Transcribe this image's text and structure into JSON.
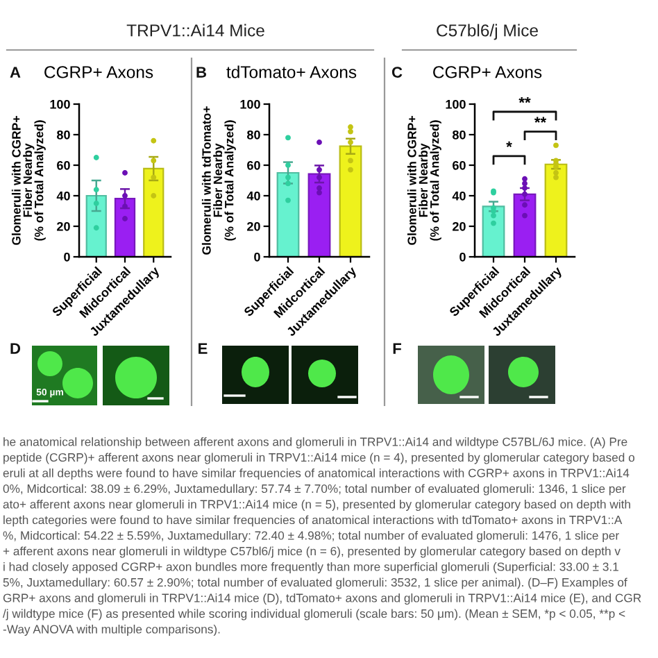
{
  "chart_data": [
    {
      "type": "bar",
      "title": "CGRP+ Axons",
      "ylabel": "Glomeruli with CGRP+\nFiber Nearby\n(% of Total Analyzed)",
      "categories": [
        "Superficial",
        "Midcortical",
        "Juxtamedullary"
      ],
      "ylim": [
        0,
        100
      ],
      "yticks": [
        0,
        20,
        40,
        60,
        80,
        100
      ],
      "series": [
        {
          "type": "bar",
          "colors": [
            "#66f2cf",
            "#9a1ff2",
            "#eef21c"
          ],
          "values": [
            40,
            38.09,
            57.74
          ],
          "errors": [
            10,
            6.29,
            7.7
          ]
        },
        {
          "type": "scatter",
          "marker": "circle",
          "x": [
            "Superficial",
            "Superficial",
            "Superficial",
            "Superficial",
            "Midcortical",
            "Midcortical",
            "Midcortical",
            "Midcortical",
            "Juxtamedullary",
            "Juxtamedullary",
            "Juxtamedullary",
            "Juxtamedullary"
          ],
          "values": [
            65,
            44,
            35,
            19,
            55,
            40,
            33,
            25,
            76,
            63,
            52,
            40
          ],
          "colors": [
            "#2fcf9f",
            "#2fcf9f",
            "#2fcf9f",
            "#2fcf9f",
            "#6b0fb5",
            "#6b0fb5",
            "#6b0fb5",
            "#6b0fb5",
            "#c4c414",
            "#c4c414",
            "#c4c414",
            "#c4c414"
          ]
        }
      ],
      "annotations": [
        "A",
        "D",
        "50 µm",
        "TRPV1::Ai14 Mice"
      ]
    },
    {
      "type": "bar",
      "title": "tdTomato+ Axons",
      "ylabel": "Glomeruli with tdTomato+\nFiber Nearby\n(% of Total Analyzed)",
      "categories": [
        "Superficial",
        "Midcortical",
        "Juxtamedullary"
      ],
      "ylim": [
        0,
        100
      ],
      "yticks": [
        0,
        20,
        40,
        60,
        80,
        100
      ],
      "series": [
        {
          "type": "bar",
          "colors": [
            "#66f2cf",
            "#9a1ff2",
            "#eef21c"
          ],
          "values": [
            55,
            54.22,
            72.4
          ],
          "errors": [
            7,
            5.59,
            4.98
          ]
        },
        {
          "type": "scatter",
          "marker": "circle",
          "x": [
            "Superficial",
            "Superficial",
            "Superficial",
            "Superficial",
            "Superficial",
            "Midcortical",
            "Midcortical",
            "Midcortical",
            "Midcortical",
            "Midcortical",
            "Juxtamedullary",
            "Juxtamedullary",
            "Juxtamedullary",
            "Juxtamedullary",
            "Juxtamedullary"
          ],
          "values": [
            78,
            60,
            52,
            48,
            37,
            75,
            57,
            52,
            45,
            42,
            85,
            82,
            75,
            63,
            57
          ],
          "colors": [
            "#2fcf9f",
            "#2fcf9f",
            "#2fcf9f",
            "#2fcf9f",
            "#2fcf9f",
            "#6b0fb5",
            "#6b0fb5",
            "#6b0fb5",
            "#6b0fb5",
            "#6b0fb5",
            "#c4c414",
            "#c4c414",
            "#c4c414",
            "#c4c414",
            "#c4c414"
          ]
        }
      ],
      "annotations": [
        "B",
        "E"
      ]
    },
    {
      "type": "bar",
      "title": "CGRP+ Axons",
      "ylabel": "Glomeruli with CGRP+\nFiber Nearby\n(% of Total Analyzed)",
      "categories": [
        "Superficial",
        "Midcortical",
        "Juxtamedullary"
      ],
      "ylim": [
        0,
        100
      ],
      "yticks": [
        0,
        20,
        40,
        60,
        80,
        100
      ],
      "series": [
        {
          "type": "bar",
          "colors": [
            "#66f2cf",
            "#9a1ff2",
            "#eef21c"
          ],
          "values": [
            33.0,
            41,
            60.57
          ],
          "errors": [
            3.1,
            4,
            2.9
          ]
        },
        {
          "type": "scatter",
          "marker": "circle",
          "x": [
            "Superficial",
            "Superficial",
            "Superficial",
            "Superficial",
            "Superficial",
            "Superficial",
            "Midcortical",
            "Midcortical",
            "Midcortical",
            "Midcortical",
            "Midcortical",
            "Midcortical",
            "Juxtamedullary",
            "Juxtamedullary",
            "Juxtamedullary",
            "Juxtamedullary",
            "Juxtamedullary",
            "Juxtamedullary"
          ],
          "values": [
            43,
            42,
            32,
            30,
            27,
            22,
            51,
            48,
            45,
            41,
            34,
            27,
            73,
            63,
            61,
            59,
            55,
            52
          ],
          "colors": [
            "#2fcf9f",
            "#2fcf9f",
            "#2fcf9f",
            "#2fcf9f",
            "#2fcf9f",
            "#2fcf9f",
            "#6b0fb5",
            "#6b0fb5",
            "#6b0fb5",
            "#6b0fb5",
            "#6b0fb5",
            "#6b0fb5",
            "#c4c414",
            "#c4c414",
            "#c4c414",
            "#c4c414",
            "#c4c414",
            "#c4c414"
          ]
        }
      ],
      "annotations": [
        "C",
        "F",
        "C57bl6/j Mice",
        "*",
        "**",
        "**"
      ]
    },
    {
      "type": "other",
      "annotations": [
        "he anatomical relationship between afferent axons and glomeruli in TRPV1::Ai14 and wildtype C57BL/6J mice. (A) Pre",
        "peptide (CGRP)+ afferent axons near glomeruli in TRPV1::Ai14 mice (n = 4), presented by glomerular category based o",
        "eruli at all depths were found to have similar frequencies of anatomical interactions with CGRP+ axons in TRPV1::Ai14",
        "0%, Midcortical: 38.09 ± 6.29%, Juxtamedullary: 57.74 ± 7.70%; total number of evaluated glomeruli: 1346, 1 slice per",
        "ato+ afferent axons near glomeruli in TRPV1::Ai14 mice (n = 5), presented by glomerular category based on depth with",
        "lepth categories were found to have similar frequencies of anatomical interactions with tdTomato+ axons in TRPV1::A",
        "%, Midcortical: 54.22 ± 5.59%, Juxtamedullary: 72.40 ± 4.98%; total number of evaluated glomeruli: 1476, 1 slice per",
        "+ afferent axons near glomeruli in wildtype C57bl6/j mice (n = 6), presented by glomerular category based on depth v",
        "i had closely apposed CGRP+ axon bundles more frequently than more superficial glomeruli (Superficial: 33.00 ± 3.1",
        "5%, Juxtamedullary: 60.57 ± 2.90%; total number of evaluated glomeruli: 3532, 1 slice per animal). (D–F) Examples of",
        "GRP+ axons and glomeruli in TRPV1::Ai14 mice (D), tdTomato+ axons and glomeruli in TRPV1::Ai14 mice (E), and CGR",
        "/j wildtype mice (F) as presented while scoring individual glomeruli (scale bars: 50 μm). (Mean ± SEM, *p < 0.05, **p <",
        "-Way ANOVA with multiple comparisons)."
      ]
    }
  ]
}
